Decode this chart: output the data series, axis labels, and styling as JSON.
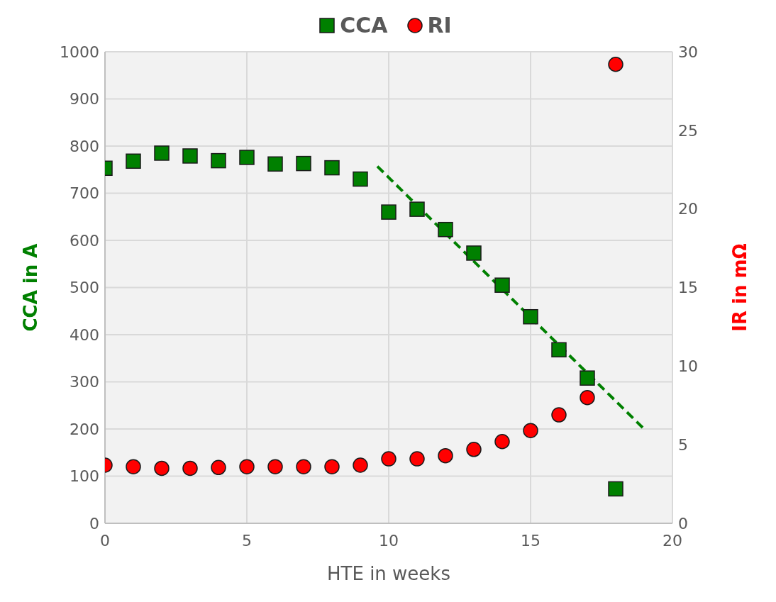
{
  "chart_data": {
    "type": "scatter",
    "xlabel": "HTE in weeks",
    "ylabel": "CCA in A",
    "y2label": "IR in mΩ",
    "x": [
      0,
      1,
      2,
      3,
      4,
      5,
      6,
      7,
      8,
      9,
      10,
      11,
      12,
      13,
      14,
      15,
      16,
      17,
      18
    ],
    "series": [
      {
        "name": "CCA",
        "color": "#008000",
        "marker": "square",
        "values": [
          753,
          768,
          785,
          779,
          769,
          776,
          762,
          763,
          754,
          730,
          660,
          666,
          623,
          573,
          505,
          438,
          368,
          308,
          73
        ]
      },
      {
        "name": "RI",
        "color": "#ff0000",
        "marker": "circle",
        "axis": "y2",
        "values": [
          3.7,
          3.6,
          3.5,
          3.5,
          3.55,
          3.6,
          3.6,
          3.6,
          3.6,
          3.7,
          4.1,
          4.1,
          4.3,
          4.7,
          5.2,
          5.9,
          6.9,
          8.0,
          29.2
        ]
      },
      {
        "type": "line",
        "color": "#008000",
        "line_style": "dashed",
        "marker": "none",
        "x": [
          9.6,
          19
        ],
        "values": [
          757,
          200
        ]
      }
    ],
    "xlim": [
      0,
      20
    ],
    "xticks": [
      0,
      5,
      10,
      15,
      20
    ],
    "ylim": [
      0,
      1000
    ],
    "yticks": [
      0,
      100,
      200,
      300,
      400,
      500,
      600,
      700,
      800,
      900,
      1000
    ],
    "y2lim": [
      0,
      30
    ],
    "y2ticks": [
      0,
      5,
      10,
      15,
      20,
      25,
      30
    ],
    "grid": true,
    "legend": "top"
  }
}
